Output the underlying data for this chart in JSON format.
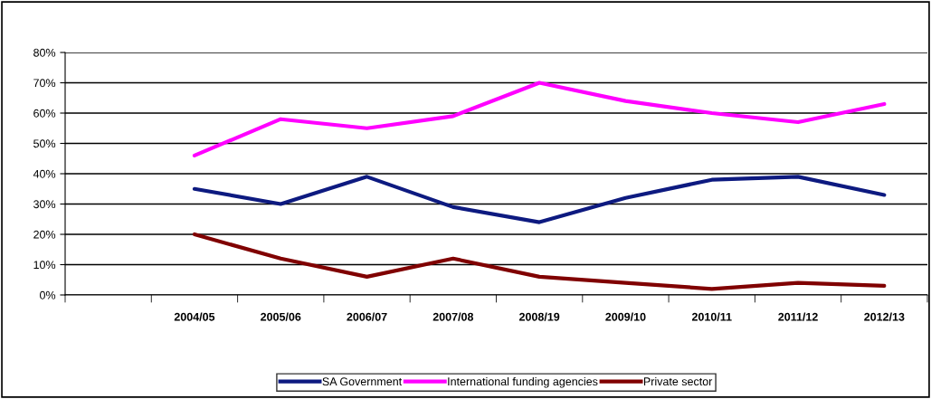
{
  "chart_data": {
    "type": "line",
    "categories": [
      null,
      "2004/05",
      "2005/06",
      "2006/07",
      "2007/08",
      "2008/19",
      "2009/10",
      "2010/11",
      "2011/12",
      "2012/13"
    ],
    "series": [
      {
        "name": "SA Government",
        "color": "#0d1a80",
        "values": [
          null,
          35,
          30,
          39,
          29,
          24,
          32,
          38,
          39,
          33
        ]
      },
      {
        "name": "International funding agencies",
        "color": "#ff00ff",
        "values": [
          null,
          46,
          58,
          55,
          59,
          70,
          64,
          60,
          57,
          63
        ]
      },
      {
        "name": "Private sector",
        "color": "#800000",
        "values": [
          null,
          20,
          12,
          6,
          12,
          6,
          4,
          2,
          4,
          3
        ]
      }
    ],
    "ylim": [
      0,
      80
    ],
    "yticks": [
      {
        "value": 0,
        "label": "0%"
      },
      {
        "value": 10,
        "label": "10%"
      },
      {
        "value": 20,
        "label": "20%"
      },
      {
        "value": 30,
        "label": "30%"
      },
      {
        "value": 40,
        "label": "40%"
      },
      {
        "value": 50,
        "label": "50%"
      },
      {
        "value": 60,
        "label": "60%"
      },
      {
        "value": 70,
        "label": "70%"
      },
      {
        "value": 80,
        "label": "80%"
      }
    ],
    "grid": "y",
    "legend": "bottom",
    "marker": "none",
    "line_style": "solid"
  }
}
